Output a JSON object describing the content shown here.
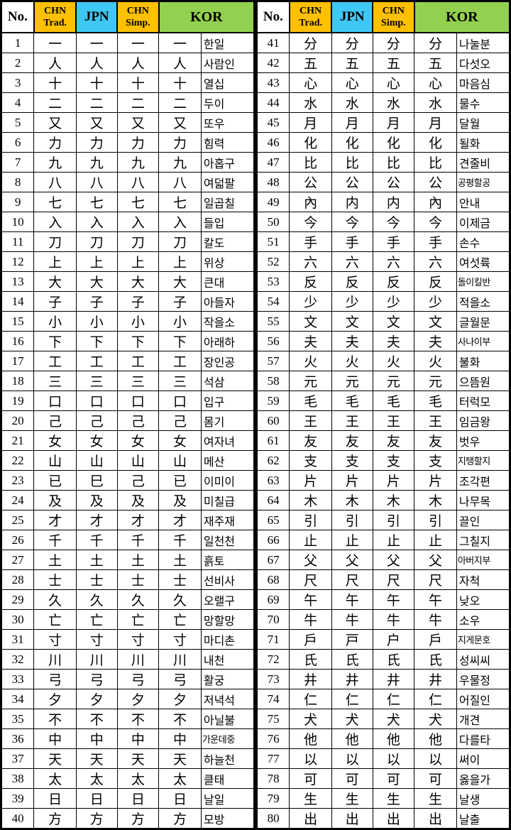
{
  "header": {
    "no": "No.",
    "chn_trad_line1": "CHN",
    "chn_trad_line2": "Trad.",
    "jpn": "JPN",
    "chn_simp_line1": "CHN",
    "chn_simp_line2": "Simp.",
    "kor": "KOR"
  },
  "colors": {
    "orange": "#FFC000",
    "cyan": "#3FC8F5",
    "green": "#92D050",
    "border": "#000000",
    "background": "#FFFFFF"
  },
  "tables": [
    {
      "rows": [
        {
          "no": "1",
          "trad": "一",
          "jpn": "一",
          "simp": "一",
          "kor": "一",
          "reading": "한일"
        },
        {
          "no": "2",
          "trad": "人",
          "jpn": "人",
          "simp": "人",
          "kor": "人",
          "reading": "사람인"
        },
        {
          "no": "3",
          "trad": "十",
          "jpn": "十",
          "simp": "十",
          "kor": "十",
          "reading": "열십"
        },
        {
          "no": "4",
          "trad": "二",
          "jpn": "二",
          "simp": "二",
          "kor": "二",
          "reading": "두이"
        },
        {
          "no": "5",
          "trad": "又",
          "jpn": "又",
          "simp": "又",
          "kor": "又",
          "reading": "또우"
        },
        {
          "no": "6",
          "trad": "力",
          "jpn": "力",
          "simp": "力",
          "kor": "力",
          "reading": "힘력"
        },
        {
          "no": "7",
          "trad": "九",
          "jpn": "九",
          "simp": "九",
          "kor": "九",
          "reading": "아홉구"
        },
        {
          "no": "8",
          "trad": "八",
          "jpn": "八",
          "simp": "八",
          "kor": "八",
          "reading": "여덟팔"
        },
        {
          "no": "9",
          "trad": "七",
          "jpn": "七",
          "simp": "七",
          "kor": "七",
          "reading": "일곱칠"
        },
        {
          "no": "10",
          "trad": "入",
          "jpn": "入",
          "simp": "入",
          "kor": "入",
          "reading": "들입"
        },
        {
          "no": "11",
          "trad": "刀",
          "jpn": "刀",
          "simp": "刀",
          "kor": "刀",
          "reading": "칼도"
        },
        {
          "no": "12",
          "trad": "上",
          "jpn": "上",
          "simp": "上",
          "kor": "上",
          "reading": "위상"
        },
        {
          "no": "13",
          "trad": "大",
          "jpn": "大",
          "simp": "大",
          "kor": "大",
          "reading": "큰대"
        },
        {
          "no": "14",
          "trad": "子",
          "jpn": "子",
          "simp": "子",
          "kor": "子",
          "reading": "아들자"
        },
        {
          "no": "15",
          "trad": "小",
          "jpn": "小",
          "simp": "小",
          "kor": "小",
          "reading": "작을소"
        },
        {
          "no": "16",
          "trad": "下",
          "jpn": "下",
          "simp": "下",
          "kor": "下",
          "reading": "아래하"
        },
        {
          "no": "17",
          "trad": "工",
          "jpn": "工",
          "simp": "工",
          "kor": "工",
          "reading": "장인공"
        },
        {
          "no": "18",
          "trad": "三",
          "jpn": "三",
          "simp": "三",
          "kor": "三",
          "reading": "석삼"
        },
        {
          "no": "19",
          "trad": "口",
          "jpn": "口",
          "simp": "口",
          "kor": "口",
          "reading": "입구"
        },
        {
          "no": "20",
          "trad": "己",
          "jpn": "己",
          "simp": "己",
          "kor": "己",
          "reading": "몸기"
        },
        {
          "no": "21",
          "trad": "女",
          "jpn": "女",
          "simp": "女",
          "kor": "女",
          "reading": "여자녀"
        },
        {
          "no": "22",
          "trad": "山",
          "jpn": "山",
          "simp": "山",
          "kor": "山",
          "reading": "메산"
        },
        {
          "no": "23",
          "trad": "已",
          "jpn": "巳",
          "simp": "己",
          "kor": "已",
          "reading": "이미이"
        },
        {
          "no": "24",
          "trad": "及",
          "jpn": "及",
          "simp": "及",
          "kor": "及",
          "reading": "미칠급"
        },
        {
          "no": "25",
          "trad": "才",
          "jpn": "才",
          "simp": "才",
          "kor": "才",
          "reading": "재주재"
        },
        {
          "no": "26",
          "trad": "千",
          "jpn": "千",
          "simp": "千",
          "kor": "千",
          "reading": "일천천"
        },
        {
          "no": "27",
          "trad": "土",
          "jpn": "土",
          "simp": "土",
          "kor": "土",
          "reading": "흙토"
        },
        {
          "no": "28",
          "trad": "士",
          "jpn": "士",
          "simp": "士",
          "kor": "士",
          "reading": "선비사"
        },
        {
          "no": "29",
          "trad": "久",
          "jpn": "久",
          "simp": "久",
          "kor": "久",
          "reading": "오랠구"
        },
        {
          "no": "30",
          "trad": "亡",
          "jpn": "亡",
          "simp": "亡",
          "kor": "亡",
          "reading": "망할망"
        },
        {
          "no": "31",
          "trad": "寸",
          "jpn": "寸",
          "simp": "寸",
          "kor": "寸",
          "reading": "마디촌"
        },
        {
          "no": "32",
          "trad": "川",
          "jpn": "川",
          "simp": "川",
          "kor": "川",
          "reading": "내천"
        },
        {
          "no": "33",
          "trad": "弓",
          "jpn": "弓",
          "simp": "弓",
          "kor": "弓",
          "reading": "활궁"
        },
        {
          "no": "34",
          "trad": "夕",
          "jpn": "夕",
          "simp": "夕",
          "kor": "夕",
          "reading": "저녁석"
        },
        {
          "no": "35",
          "trad": "不",
          "jpn": "不",
          "simp": "不",
          "kor": "不",
          "reading": "아닐불"
        },
        {
          "no": "36",
          "trad": "中",
          "jpn": "中",
          "simp": "中",
          "kor": "中",
          "reading": "가운데중"
        },
        {
          "no": "37",
          "trad": "天",
          "jpn": "天",
          "simp": "天",
          "kor": "天",
          "reading": "하늘천"
        },
        {
          "no": "38",
          "trad": "太",
          "jpn": "太",
          "simp": "太",
          "kor": "太",
          "reading": "클태"
        },
        {
          "no": "39",
          "trad": "日",
          "jpn": "日",
          "simp": "日",
          "kor": "日",
          "reading": "날일"
        },
        {
          "no": "40",
          "trad": "方",
          "jpn": "方",
          "simp": "方",
          "kor": "方",
          "reading": "모방"
        }
      ]
    },
    {
      "rows": [
        {
          "no": "41",
          "trad": "分",
          "jpn": "分",
          "simp": "分",
          "kor": "分",
          "reading": "나눌분"
        },
        {
          "no": "42",
          "trad": "五",
          "jpn": "五",
          "simp": "五",
          "kor": "五",
          "reading": "다섯오"
        },
        {
          "no": "43",
          "trad": "心",
          "jpn": "心",
          "simp": "心",
          "kor": "心",
          "reading": "마음심"
        },
        {
          "no": "44",
          "trad": "水",
          "jpn": "水",
          "simp": "水",
          "kor": "水",
          "reading": "물수"
        },
        {
          "no": "45",
          "trad": "月",
          "jpn": "月",
          "simp": "月",
          "kor": "月",
          "reading": "달월"
        },
        {
          "no": "46",
          "trad": "化",
          "jpn": "化",
          "simp": "化",
          "kor": "化",
          "reading": "될화"
        },
        {
          "no": "47",
          "trad": "比",
          "jpn": "比",
          "simp": "比",
          "kor": "比",
          "reading": "견줄비"
        },
        {
          "no": "48",
          "trad": "公",
          "jpn": "公",
          "simp": "公",
          "kor": "公",
          "reading": "공평할공"
        },
        {
          "no": "49",
          "trad": "內",
          "jpn": "内",
          "simp": "内",
          "kor": "內",
          "reading": "안내"
        },
        {
          "no": "50",
          "trad": "今",
          "jpn": "今",
          "simp": "今",
          "kor": "今",
          "reading": "이제금"
        },
        {
          "no": "51",
          "trad": "手",
          "jpn": "手",
          "simp": "手",
          "kor": "手",
          "reading": "손수"
        },
        {
          "no": "52",
          "trad": "六",
          "jpn": "六",
          "simp": "六",
          "kor": "六",
          "reading": "여섯륙"
        },
        {
          "no": "53",
          "trad": "反",
          "jpn": "反",
          "simp": "反",
          "kor": "反",
          "reading": "돌이킬반"
        },
        {
          "no": "54",
          "trad": "少",
          "jpn": "少",
          "simp": "少",
          "kor": "少",
          "reading": "적을소"
        },
        {
          "no": "55",
          "trad": "文",
          "jpn": "文",
          "simp": "文",
          "kor": "文",
          "reading": "글월문"
        },
        {
          "no": "56",
          "trad": "夫",
          "jpn": "夫",
          "simp": "夫",
          "kor": "夫",
          "reading": "사나이부"
        },
        {
          "no": "57",
          "trad": "火",
          "jpn": "火",
          "simp": "火",
          "kor": "火",
          "reading": "불화"
        },
        {
          "no": "58",
          "trad": "元",
          "jpn": "元",
          "simp": "元",
          "kor": "元",
          "reading": "으뜸원"
        },
        {
          "no": "59",
          "trad": "毛",
          "jpn": "毛",
          "simp": "毛",
          "kor": "毛",
          "reading": "터럭모"
        },
        {
          "no": "60",
          "trad": "王",
          "jpn": "王",
          "simp": "王",
          "kor": "王",
          "reading": "임금왕"
        },
        {
          "no": "61",
          "trad": "友",
          "jpn": "友",
          "simp": "友",
          "kor": "友",
          "reading": "벗우"
        },
        {
          "no": "62",
          "trad": "支",
          "jpn": "支",
          "simp": "支",
          "kor": "支",
          "reading": "지탱할지"
        },
        {
          "no": "63",
          "trad": "片",
          "jpn": "片",
          "simp": "片",
          "kor": "片",
          "reading": "조각편"
        },
        {
          "no": "64",
          "trad": "木",
          "jpn": "木",
          "simp": "木",
          "kor": "木",
          "reading": "나무목"
        },
        {
          "no": "65",
          "trad": "引",
          "jpn": "引",
          "simp": "引",
          "kor": "引",
          "reading": "끌인"
        },
        {
          "no": "66",
          "trad": "止",
          "jpn": "止",
          "simp": "止",
          "kor": "止",
          "reading": "그칠지"
        },
        {
          "no": "67",
          "trad": "父",
          "jpn": "父",
          "simp": "父",
          "kor": "父",
          "reading": "아버지부"
        },
        {
          "no": "68",
          "trad": "尺",
          "jpn": "尺",
          "simp": "尺",
          "kor": "尺",
          "reading": "자척"
        },
        {
          "no": "69",
          "trad": "午",
          "jpn": "午",
          "simp": "午",
          "kor": "午",
          "reading": "낮오"
        },
        {
          "no": "70",
          "trad": "牛",
          "jpn": "牛",
          "simp": "牛",
          "kor": "牛",
          "reading": "소우"
        },
        {
          "no": "71",
          "trad": "戶",
          "jpn": "戸",
          "simp": "户",
          "kor": "戶",
          "reading": "지게문호"
        },
        {
          "no": "72",
          "trad": "氏",
          "jpn": "氏",
          "simp": "氏",
          "kor": "氏",
          "reading": "성씨씨"
        },
        {
          "no": "73",
          "trad": "井",
          "jpn": "井",
          "simp": "井",
          "kor": "井",
          "reading": "우물정"
        },
        {
          "no": "74",
          "trad": "仁",
          "jpn": "仁",
          "simp": "仁",
          "kor": "仁",
          "reading": "어질인"
        },
        {
          "no": "75",
          "trad": "犬",
          "jpn": "犬",
          "simp": "犬",
          "kor": "犬",
          "reading": "개견"
        },
        {
          "no": "76",
          "trad": "他",
          "jpn": "他",
          "simp": "他",
          "kor": "他",
          "reading": "다를타"
        },
        {
          "no": "77",
          "trad": "以",
          "jpn": "以",
          "simp": "以",
          "kor": "以",
          "reading": "써이"
        },
        {
          "no": "78",
          "trad": "可",
          "jpn": "可",
          "simp": "可",
          "kor": "可",
          "reading": "옳을가"
        },
        {
          "no": "79",
          "trad": "生",
          "jpn": "生",
          "simp": "生",
          "kor": "生",
          "reading": "날생"
        },
        {
          "no": "80",
          "trad": "出",
          "jpn": "出",
          "simp": "出",
          "kor": "出",
          "reading": "날출"
        }
      ]
    }
  ]
}
